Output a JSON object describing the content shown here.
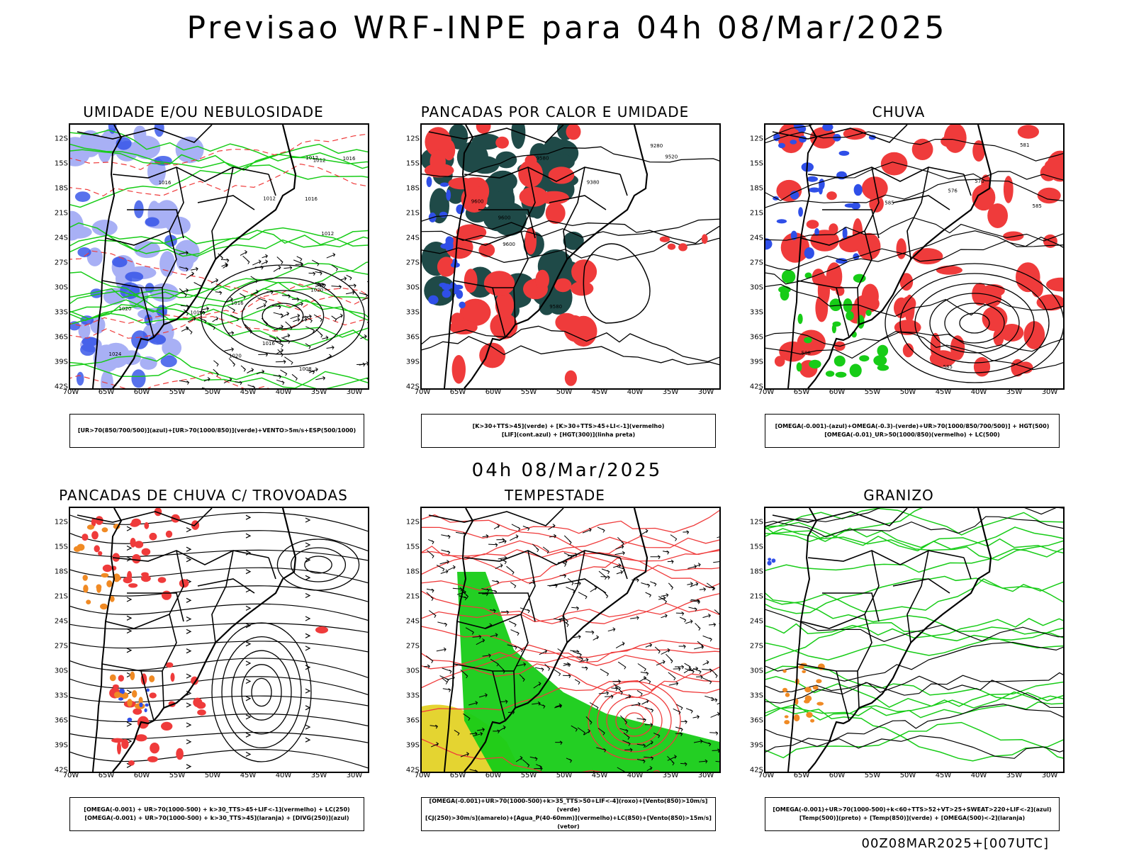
{
  "title": "Previsao WRF-INPE  para 04h 08/Mar/2025",
  "mid_title": "04h 08/Mar/2025",
  "footer": "00Z08MAR2025+[007UTC]",
  "lat_labels": [
    "12S",
    "15S",
    "18S",
    "21S",
    "24S",
    "27S",
    "30S",
    "33S",
    "36S",
    "39S",
    "42S"
  ],
  "lon_labels": [
    "70W",
    "65W",
    "60W",
    "55W",
    "50W",
    "45W",
    "40W",
    "35W",
    "30W"
  ],
  "colors": {
    "red": "#ef3b3b",
    "green": "#17cc17",
    "blue": "#2f4fe8",
    "lightblue": "#9fa8f5",
    "darkteal": "#1f4a48",
    "orange": "#f08a24",
    "yellow": "#e4d431"
  },
  "panels": [
    {
      "title": "UMIDADE E/OU NEBULOSIDADE",
      "legend": [
        "[UR>70(850/700/500)](azul)+[UR>70(1000/850)](verde)+VENTO>5m/s+ESP(500/1000)"
      ],
      "contour_labels": [
        "1012",
        "1016",
        "1016",
        "1020",
        "1016",
        "1020",
        "1012",
        "1008",
        "1016",
        "1020",
        "1016",
        "1012",
        "1024",
        "1016",
        "1012"
      ]
    },
    {
      "title": "PANCADAS POR CALOR E UMIDADE",
      "legend": [
        "[K>30+TTS>45](verde) + [K>30+TTS>45+LI<-1](vermelho)",
        "[LIF](cont.azul) + [HGT(300)](linha preta)"
      ],
      "contour_labels": [
        "9600",
        "9600",
        "9580",
        "9600",
        "9520",
        "9580",
        "9380",
        "9280"
      ]
    },
    {
      "title": "CHUVA",
      "legend": [
        "[OMEGA(-0.001)-(azul)+OMEGA(-0.3)-(verde)+UR>70(1000/850/700/500)] + HGT(500)",
        "[OMEGA(-0.01)_UR>50(1000/850)(vermelho) + LC(500)"
      ],
      "contour_labels": [
        "585",
        "585",
        "585",
        "581",
        "588",
        "576",
        "570"
      ]
    },
    {
      "title": "PANCADAS DE CHUVA C/ TROVOADAS",
      "legend": [
        "[OMEGA(-0.001) + UR>70(1000-500) + k>30_TTS>45+LIF<-1](vermelho) + LC(250)",
        "[OMEGA(-0.001) + UR>70(1000-500) + k>30_TTS>45](laranja) + [DIVG(250)](azul)"
      ]
    },
    {
      "title": "TEMPESTADE",
      "legend": [
        "[OMEGA(-0.001)+UR>70(1000-500)+k>35_TTS>50+LIF<-4](roxo)+[Vento(850)>10m/s](verde)",
        "[CJ(250)>30m/s](amarelo)+[Agua_P(40-60mm)](vermelho)+LC(850)+[Vento(850)>15m/s](vetor)"
      ]
    },
    {
      "title": "GRANIZO",
      "legend": [
        "[OMEGA(-0.001)+UR>70(1000-500)+k<60+TTS>52+VT>25+SWEAT>220+LIF<-2](azul)",
        "[Temp(500)](preto) + [Temp(850)](verde) + [OMEGA(500)<-2](laranja)"
      ]
    }
  ]
}
